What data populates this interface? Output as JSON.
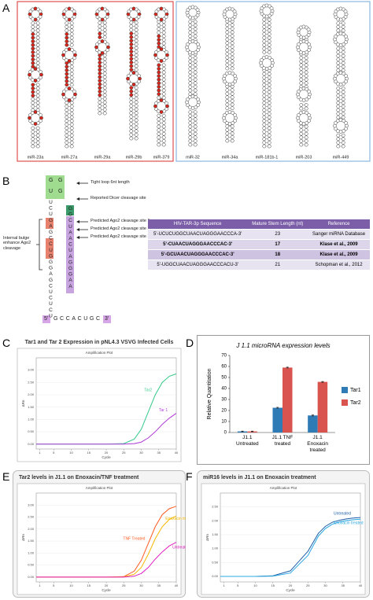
{
  "panel_letters": [
    "A",
    "B",
    "C",
    "D",
    "E",
    "F"
  ],
  "panel_a": {
    "structures": [
      "miR-23a",
      "miR-27a",
      "miR-29a",
      "miR-29b",
      "miR-379",
      "miR-32",
      "miR-34a",
      "miR-181b-1",
      "miR-203",
      "miR-449"
    ]
  },
  "panel_b": {
    "loop": [
      "G",
      "G",
      "U",
      "G"
    ],
    "left_strand": "UCUGAGCCUGGGAGCUCUCU",
    "right_strand": "GGCUAACUAGGGAA",
    "bottom_strand": "GCCACUGC",
    "five_prime": "5'",
    "three_prime": "3'",
    "annotations": [
      "Tight loop 6nt length",
      "Reported Dicer cleavage site",
      "Predicted Ago2 cleavage site 1",
      "Predicted Ago2 cleavage site 2",
      "Predicted Ago2 cleavage site 3"
    ],
    "bulge_note": "Internal bulge enhance Ago2 cleavage",
    "table": {
      "header": [
        "HIV-TAR-3p Sequence",
        "Mature Stem Length (nt)",
        "Reference"
      ],
      "rows": [
        [
          "5'-UCUCUGGCUAACUAGGGAACCCA-3'",
          23,
          "Sanger miRNA Database"
        ],
        [
          "5'-CUAACUAGGGAACCCAC-3'",
          17,
          "Klase et al., 2009"
        ],
        [
          "5'-GCUAACUAGGGAACCCAC-3'",
          18,
          "Klase et al., 2009"
        ],
        [
          "5'-UGGCUAACUAGGGAACCCACU-3'",
          21,
          "Schopman et al., 2012"
        ]
      ]
    }
  },
  "chart_data": [
    {
      "type": "line",
      "title": "Tar1 and Tar 2 Expression in pNL4.3 VSVG Infected Cells",
      "subtitle": "Amplification Plot",
      "x_label": "Cycle",
      "y_label": "ΔRn",
      "x": [
        0,
        5,
        10,
        15,
        20,
        25,
        28,
        30,
        32,
        34,
        36,
        38,
        40
      ],
      "series": [
        {
          "name": "Tar2",
          "color": "#34c98a",
          "values": [
            0,
            0,
            0,
            0,
            0,
            0.02,
            0.2,
            0.6,
            1.3,
            2.0,
            2.5,
            2.75,
            2.85
          ]
        },
        {
          "name": "Tar 1",
          "color": "#b03ad8",
          "values": [
            0,
            0,
            0,
            0,
            0,
            0,
            0.02,
            0.08,
            0.25,
            0.5,
            0.8,
            1.05,
            1.25
          ]
        }
      ],
      "xlim": [
        0,
        40
      ],
      "xticks": [
        1,
        5,
        10,
        15,
        20,
        25,
        30,
        35,
        40
      ],
      "ylim": [
        -0.2,
        3.5
      ],
      "yticks": [
        {
          "value": 0,
          "label": "0.00"
        },
        {
          "value": 0.5,
          "label": "0.50"
        },
        {
          "value": 1,
          "label": "1.00"
        },
        {
          "value": 1.5,
          "label": "1.50"
        },
        {
          "value": 2,
          "label": "2.00"
        },
        {
          "value": 2.5,
          "label": "2.50"
        },
        {
          "value": 3,
          "label": "3.00"
        }
      ]
    },
    {
      "type": "bar",
      "title": "J 1.1  microRNA expression levels",
      "y_label": "Relative Quantitation",
      "categories": [
        "J1.1 Untreated",
        "J1.1 TNF treated",
        "J1.1 Enoxacin treated"
      ],
      "series": [
        {
          "name": "Tar1",
          "color": "#2e7bb6",
          "values": [
            1,
            22.5,
            15.5
          ],
          "errors": [
            0.3,
            0.4,
            0.4
          ]
        },
        {
          "name": "Tar2",
          "color": "#d9534f",
          "values": [
            1,
            59,
            46
          ],
          "errors": [
            0.3,
            0.4,
            0.4
          ]
        }
      ],
      "ylim": [
        0,
        70
      ],
      "yticks": [
        0,
        10,
        20,
        30,
        40,
        50,
        60,
        70
      ]
    },
    {
      "type": "line",
      "title": "Tar2 levels in J1.1 on Enoxacin/TNF treatment",
      "subtitle": "Amplification Plot",
      "x_label": "Cycle",
      "y_label": "ΔRn",
      "x": [
        0,
        5,
        10,
        15,
        20,
        25,
        28,
        30,
        32,
        34,
        36,
        38,
        40
      ],
      "series": [
        {
          "name": "TNF Treated",
          "color": "#ff5a1f",
          "values": [
            0,
            0,
            0,
            0,
            0,
            0.02,
            0.25,
            0.7,
            1.4,
            2.1,
            2.6,
            2.85,
            2.95
          ]
        },
        {
          "name": "Enoxacin treated",
          "color": "#f5b800",
          "values": [
            0,
            0,
            0,
            0,
            0,
            0.01,
            0.12,
            0.4,
            0.95,
            1.6,
            2.1,
            2.4,
            2.55
          ]
        },
        {
          "name": "Untreated",
          "color": "#e020c0",
          "values": [
            0,
            0,
            0,
            0,
            0,
            0,
            0.04,
            0.15,
            0.4,
            0.75,
            1.05,
            1.3,
            1.45
          ]
        }
      ],
      "xlim": [
        0,
        40
      ],
      "xticks": [
        1,
        5,
        10,
        15,
        20,
        25,
        30,
        35,
        40
      ],
      "ylim": [
        -0.2,
        3.5
      ],
      "yticks": [
        {
          "value": 0,
          "label": "0.00"
        },
        {
          "value": 0.5,
          "label": "0.50"
        },
        {
          "value": 1,
          "label": "1.00"
        },
        {
          "value": 1.5,
          "label": "1.50"
        },
        {
          "value": 2,
          "label": "2.00"
        },
        {
          "value": 2.5,
          "label": "2.50"
        },
        {
          "value": 3,
          "label": "3.00"
        }
      ]
    },
    {
      "type": "line",
      "title": "miR16 levels in J1.1 on Enoxacin treatment",
      "subtitle": "Amplification Plot",
      "x_label": "Cycle",
      "y_label": "ΔRn",
      "x": [
        0,
        5,
        10,
        15,
        20,
        25,
        28,
        30,
        32,
        34,
        36,
        38,
        40
      ],
      "series": [
        {
          "name": "Untreated",
          "color": "#1f5fa8",
          "values": [
            0,
            0,
            0,
            0.02,
            0.2,
            0.9,
            1.55,
            1.8,
            1.95,
            2.02,
            2.07,
            2.1,
            2.12
          ]
        },
        {
          "name": "Enoxacin treated",
          "color": "#29a8e0",
          "values": [
            0,
            0,
            0,
            0.01,
            0.12,
            0.75,
            1.45,
            1.72,
            1.88,
            1.96,
            2.01,
            2.04,
            2.06
          ]
        }
      ],
      "xlim": [
        0,
        40
      ],
      "xticks": [
        1,
        5,
        10,
        15,
        20,
        25,
        30,
        35,
        40
      ],
      "ylim": [
        -0.2,
        3.0
      ],
      "yticks": [
        {
          "value": 0,
          "label": "0.00"
        },
        {
          "value": 0.5,
          "label": "0.50"
        },
        {
          "value": 1,
          "label": "1.00"
        },
        {
          "value": 1.5,
          "label": "1.50"
        },
        {
          "value": 2,
          "label": "2.00"
        },
        {
          "value": 2.5,
          "label": "2.50"
        }
      ]
    }
  ]
}
